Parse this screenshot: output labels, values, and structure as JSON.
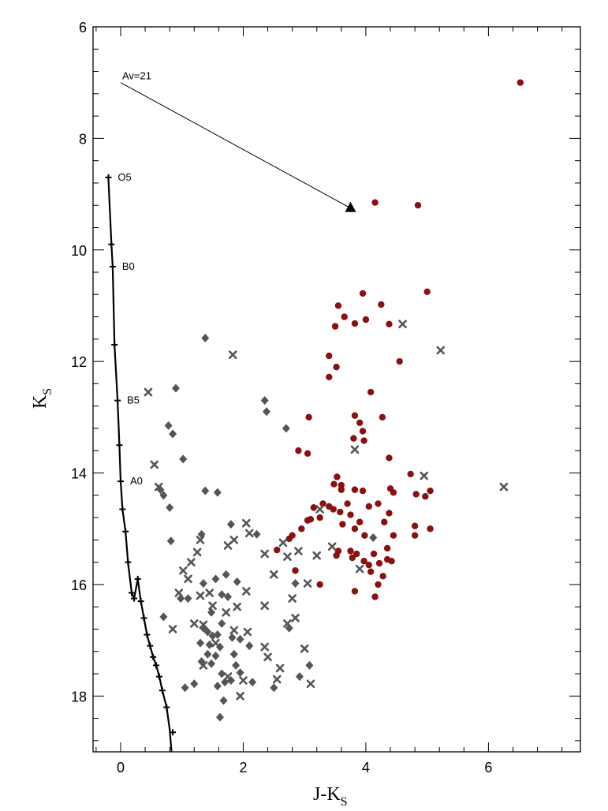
{
  "chart_data": {
    "type": "scatter",
    "title": "",
    "xlabel": {
      "main": "J-K",
      "sub": "S"
    },
    "ylabel": {
      "main": "K",
      "sub": "S"
    },
    "xlim": [
      -0.45,
      7.5
    ],
    "ylim": [
      19.0,
      6.0
    ],
    "y_inverted": true,
    "x_ticks": [
      0,
      2,
      4,
      6
    ],
    "y_ticks": [
      6,
      8,
      10,
      12,
      14,
      16,
      18
    ],
    "grid": false,
    "main_sequence": {
      "points": [
        [
          -0.2,
          8.7
        ],
        [
          -0.15,
          9.9
        ],
        [
          -0.13,
          10.3
        ],
        [
          -0.1,
          11.7
        ],
        [
          -0.05,
          12.7
        ],
        [
          -0.02,
          13.5
        ],
        [
          0.0,
          14.15
        ],
        [
          0.03,
          14.65
        ],
        [
          0.08,
          15.05
        ],
        [
          0.12,
          15.6
        ],
        [
          0.18,
          16.15
        ],
        [
          0.22,
          16.25
        ],
        [
          0.28,
          15.9
        ],
        [
          0.33,
          16.3
        ],
        [
          0.38,
          16.6
        ],
        [
          0.43,
          16.9
        ],
        [
          0.48,
          17.1
        ],
        [
          0.53,
          17.3
        ],
        [
          0.58,
          17.45
        ],
        [
          0.63,
          17.65
        ],
        [
          0.68,
          17.9
        ],
        [
          0.75,
          18.2
        ],
        [
          0.8,
          18.6
        ],
        [
          0.83,
          19.0
        ]
      ],
      "markers": [
        [
          -0.2,
          8.7
        ],
        [
          -0.15,
          9.9
        ],
        [
          -0.13,
          10.3
        ],
        [
          -0.1,
          11.7
        ],
        [
          -0.05,
          12.7
        ],
        [
          -0.02,
          13.5
        ],
        [
          0.0,
          14.15
        ],
        [
          0.03,
          14.65
        ],
        [
          0.08,
          15.05
        ],
        [
          0.12,
          15.6
        ],
        [
          0.18,
          16.15
        ],
        [
          0.22,
          16.25
        ],
        [
          0.28,
          15.9
        ],
        [
          0.33,
          16.3
        ],
        [
          0.38,
          16.6
        ],
        [
          0.43,
          16.9
        ],
        [
          0.48,
          17.1
        ],
        [
          0.53,
          17.3
        ],
        [
          0.58,
          17.45
        ],
        [
          0.63,
          17.65
        ],
        [
          0.68,
          17.9
        ],
        [
          0.75,
          18.2
        ],
        [
          0.85,
          18.65
        ]
      ],
      "labels": [
        {
          "text": "O5",
          "x": -0.2,
          "y": 8.7
        },
        {
          "text": "B0",
          "x": -0.13,
          "y": 10.3
        },
        {
          "text": "B5",
          "x": -0.05,
          "y": 12.7
        },
        {
          "text": "A0",
          "x": 0.0,
          "y": 14.15
        }
      ]
    },
    "reddening_vector": {
      "label": "Av=21",
      "x0": 0.0,
      "y0": 7.0,
      "x1": 3.75,
      "y1": 9.25
    },
    "series": [
      {
        "marker": "filled-circle",
        "color": "#8b1010",
        "points": [
          [
            6.52,
            7.0
          ],
          [
            4.15,
            9.15
          ],
          [
            4.85,
            9.2
          ],
          [
            5.0,
            10.75
          ],
          [
            3.95,
            10.78
          ],
          [
            4.25,
            10.98
          ],
          [
            3.55,
            11.0
          ],
          [
            3.65,
            11.2
          ],
          [
            4.0,
            11.25
          ],
          [
            3.82,
            11.32
          ],
          [
            4.38,
            11.33
          ],
          [
            3.5,
            11.37
          ],
          [
            3.4,
            11.9
          ],
          [
            4.55,
            12.0
          ],
          [
            3.52,
            12.1
          ],
          [
            3.4,
            12.28
          ],
          [
            4.08,
            12.55
          ],
          [
            3.07,
            13.0
          ],
          [
            3.82,
            12.97
          ],
          [
            4.27,
            13.0
          ],
          [
            3.9,
            13.1
          ],
          [
            3.95,
            13.25
          ],
          [
            3.8,
            13.38
          ],
          [
            3.97,
            13.42
          ],
          [
            2.9,
            13.6
          ],
          [
            3.05,
            13.65
          ],
          [
            4.38,
            13.73
          ],
          [
            3.53,
            14.07
          ],
          [
            3.48,
            14.2
          ],
          [
            3.6,
            14.22
          ],
          [
            4.73,
            14.02
          ],
          [
            3.82,
            14.3
          ],
          [
            3.6,
            14.3
          ],
          [
            3.95,
            14.32
          ],
          [
            4.4,
            14.28
          ],
          [
            4.45,
            14.35
          ],
          [
            4.82,
            14.38
          ],
          [
            4.97,
            14.42
          ],
          [
            5.05,
            14.32
          ],
          [
            3.3,
            14.55
          ],
          [
            3.4,
            14.6
          ],
          [
            3.7,
            14.55
          ],
          [
            3.15,
            14.62
          ],
          [
            3.47,
            14.65
          ],
          [
            3.58,
            14.7
          ],
          [
            4.2,
            14.55
          ],
          [
            4.05,
            14.6
          ],
          [
            3.75,
            14.75
          ],
          [
            3.25,
            14.8
          ],
          [
            4.38,
            14.72
          ],
          [
            3.1,
            14.83
          ],
          [
            3.05,
            14.85
          ],
          [
            3.62,
            14.92
          ],
          [
            3.9,
            14.88
          ],
          [
            4.3,
            14.88
          ],
          [
            2.95,
            15.0
          ],
          [
            3.82,
            15.0
          ],
          [
            5.05,
            15.0
          ],
          [
            4.8,
            14.95
          ],
          [
            2.75,
            15.18
          ],
          [
            2.8,
            15.12
          ],
          [
            3.98,
            15.12
          ],
          [
            4.45,
            15.12
          ],
          [
            4.8,
            15.12
          ],
          [
            3.55,
            15.4
          ],
          [
            3.75,
            15.4
          ],
          [
            4.35,
            15.35
          ],
          [
            3.52,
            15.48
          ],
          [
            3.78,
            15.52
          ],
          [
            3.85,
            15.45
          ],
          [
            4.13,
            15.45
          ],
          [
            3.97,
            15.58
          ],
          [
            4.05,
            15.65
          ],
          [
            4.22,
            15.62
          ],
          [
            4.35,
            15.55
          ],
          [
            4.42,
            15.58
          ],
          [
            2.55,
            15.38
          ],
          [
            4.08,
            15.77
          ],
          [
            2.85,
            15.75
          ],
          [
            4.28,
            15.85
          ],
          [
            3.25,
            16.0
          ],
          [
            4.2,
            16.0
          ],
          [
            3.82,
            16.12
          ],
          [
            4.15,
            16.22
          ]
        ]
      },
      {
        "marker": "x",
        "color": "#555555",
        "points": [
          [
            1.83,
            11.88
          ],
          [
            0.45,
            12.55
          ],
          [
            4.6,
            11.33
          ],
          [
            5.22,
            11.8
          ],
          [
            0.55,
            13.85
          ],
          [
            3.82,
            13.58
          ],
          [
            0.62,
            14.25
          ],
          [
            6.25,
            14.25
          ],
          [
            4.95,
            14.05
          ],
          [
            3.25,
            14.65
          ],
          [
            1.15,
            15.6
          ],
          [
            1.02,
            15.75
          ],
          [
            1.1,
            15.9
          ],
          [
            0.95,
            16.15
          ],
          [
            1.25,
            15.42
          ],
          [
            1.3,
            15.2
          ],
          [
            1.85,
            15.2
          ],
          [
            1.75,
            15.3
          ],
          [
            2.05,
            14.9
          ],
          [
            2.1,
            15.08
          ],
          [
            2.35,
            15.45
          ],
          [
            2.65,
            15.25
          ],
          [
            2.72,
            15.5
          ],
          [
            2.9,
            15.4
          ],
          [
            3.2,
            15.48
          ],
          [
            3.45,
            15.32
          ],
          [
            3.9,
            15.72
          ],
          [
            1.3,
            16.2
          ],
          [
            1.45,
            16.15
          ],
          [
            1.5,
            16.38
          ],
          [
            1.72,
            16.5
          ],
          [
            1.9,
            16.4
          ],
          [
            2.05,
            16.12
          ],
          [
            2.5,
            15.82
          ],
          [
            2.35,
            16.38
          ],
          [
            2.8,
            16.25
          ],
          [
            3.05,
            15.98
          ],
          [
            0.85,
            16.8
          ],
          [
            1.2,
            16.7
          ],
          [
            1.35,
            16.72
          ],
          [
            1.85,
            16.82
          ],
          [
            2.07,
            16.85
          ],
          [
            2.72,
            16.7
          ],
          [
            2.85,
            16.6
          ],
          [
            1.55,
            17.05
          ],
          [
            2.35,
            17.12
          ],
          [
            2.4,
            17.3
          ],
          [
            3.0,
            17.15
          ],
          [
            2.6,
            17.5
          ],
          [
            1.35,
            17.45
          ],
          [
            1.75,
            17.65
          ],
          [
            2.0,
            17.72
          ],
          [
            3.1,
            17.78
          ],
          [
            2.55,
            17.7
          ],
          [
            1.95,
            18.0
          ]
        ]
      },
      {
        "marker": "diamond",
        "color": "#555555",
        "points": [
          [
            1.38,
            11.58
          ],
          [
            0.9,
            12.48
          ],
          [
            2.35,
            12.7
          ],
          [
            2.38,
            12.9
          ],
          [
            2.7,
            13.2
          ],
          [
            0.78,
            13.15
          ],
          [
            0.85,
            13.3
          ],
          [
            1.02,
            13.75
          ],
          [
            0.65,
            14.3
          ],
          [
            0.7,
            14.4
          ],
          [
            1.38,
            14.32
          ],
          [
            1.58,
            14.35
          ],
          [
            0.8,
            14.62
          ],
          [
            0.82,
            15.22
          ],
          [
            1.32,
            15.1
          ],
          [
            1.8,
            14.92
          ],
          [
            2.22,
            15.1
          ],
          [
            4.12,
            15.16
          ],
          [
            0.98,
            16.25
          ],
          [
            1.1,
            16.25
          ],
          [
            1.72,
            15.82
          ],
          [
            1.55,
            15.9
          ],
          [
            1.35,
            15.98
          ],
          [
            1.9,
            15.95
          ],
          [
            1.65,
            16.18
          ],
          [
            1.75,
            16.22
          ],
          [
            2.85,
            15.98
          ],
          [
            0.7,
            16.58
          ],
          [
            1.48,
            16.5
          ],
          [
            1.65,
            16.7
          ],
          [
            1.35,
            16.78
          ],
          [
            1.42,
            16.85
          ],
          [
            1.5,
            16.92
          ],
          [
            1.58,
            16.9
          ],
          [
            1.82,
            16.95
          ],
          [
            1.95,
            16.98
          ],
          [
            1.3,
            17.05
          ],
          [
            1.45,
            17.08
          ],
          [
            1.62,
            17.12
          ],
          [
            2.1,
            17.1
          ],
          [
            2.75,
            16.78
          ],
          [
            1.42,
            17.25
          ],
          [
            1.55,
            17.28
          ],
          [
            1.85,
            17.25
          ],
          [
            1.32,
            17.38
          ],
          [
            1.48,
            17.42
          ],
          [
            1.88,
            17.45
          ],
          [
            1.95,
            17.58
          ],
          [
            1.65,
            17.6
          ],
          [
            1.8,
            17.72
          ],
          [
            1.7,
            17.75
          ],
          [
            1.2,
            17.78
          ],
          [
            1.58,
            17.82
          ],
          [
            3.08,
            17.45
          ],
          [
            2.92,
            17.65
          ],
          [
            2.15,
            17.75
          ],
          [
            2.5,
            17.85
          ],
          [
            1.05,
            17.85
          ],
          [
            1.68,
            18.08
          ],
          [
            1.62,
            18.38
          ]
        ]
      }
    ]
  }
}
